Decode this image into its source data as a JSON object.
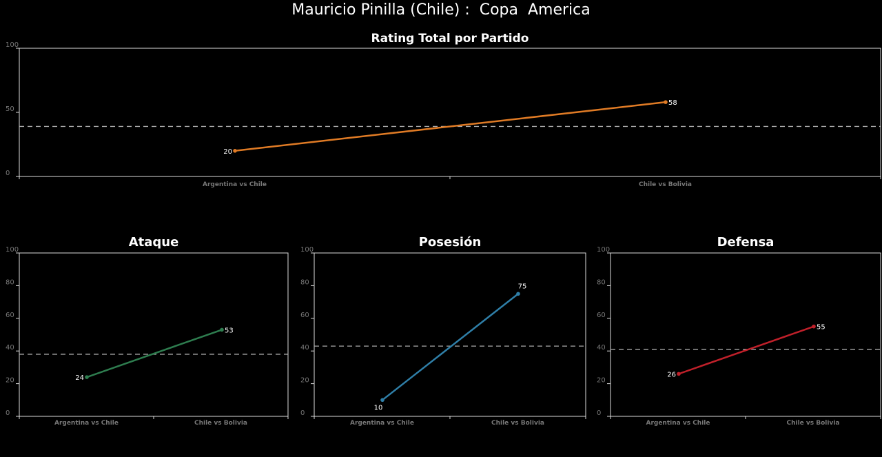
{
  "title": "Mauricio Pinilla (Chile) :  Copa  America",
  "chart_data": [
    {
      "type": "line",
      "title": "Rating Total por Partido",
      "categories": [
        "Argentina vs Chile",
        "Chile vs Bolivia"
      ],
      "series": [
        {
          "values": [
            20,
            58
          ],
          "color": "#e07b25"
        }
      ],
      "reference_line": 39,
      "yticks": [
        0,
        50,
        100
      ],
      "ylim": [
        0,
        100
      ],
      "grid": false
    },
    {
      "type": "line",
      "title": "Ataque",
      "categories": [
        "Argentina vs Chile",
        "Chile vs Bolivia"
      ],
      "series": [
        {
          "values": [
            24,
            53
          ],
          "color": "#2e7d4f"
        }
      ],
      "reference_line": 38,
      "yticks": [
        0,
        20,
        40,
        60,
        80,
        100
      ],
      "ylim": [
        0,
        100
      ],
      "grid": false
    },
    {
      "type": "line",
      "title": "Posesión",
      "categories": [
        "Argentina vs Chile",
        "Chile vs Bolivia"
      ],
      "series": [
        {
          "values": [
            10,
            75
          ],
          "color": "#2f7fa8"
        }
      ],
      "reference_line": 43,
      "yticks": [
        0,
        20,
        40,
        60,
        80,
        100
      ],
      "ylim": [
        0,
        100
      ],
      "grid": false
    },
    {
      "type": "line",
      "title": "Defensa",
      "categories": [
        "Argentina vs Chile",
        "Chile vs Bolivia"
      ],
      "series": [
        {
          "values": [
            26,
            55
          ],
          "color": "#c0202a"
        }
      ],
      "reference_line": 41,
      "yticks": [
        0,
        20,
        40,
        60,
        80,
        100
      ],
      "ylim": [
        0,
        100
      ],
      "grid": false
    }
  ]
}
